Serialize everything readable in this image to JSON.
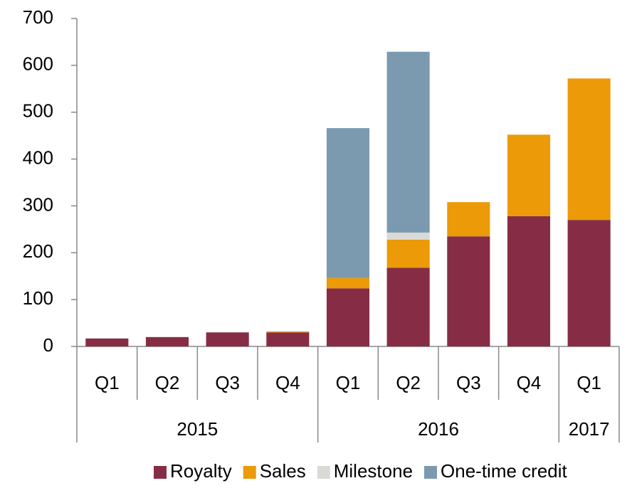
{
  "chart_data": {
    "type": "stacked_bar",
    "categories": [
      "Q1",
      "Q2",
      "Q3",
      "Q4",
      "Q1",
      "Q2",
      "Q3",
      "Q4",
      "Q1"
    ],
    "groups": [
      {
        "label": "2015",
        "span": 4
      },
      {
        "label": "2016",
        "span": 4
      },
      {
        "label": "2017",
        "span": 1
      }
    ],
    "series": [
      {
        "name": "Royalty",
        "color": "#862d45",
        "values": [
          17,
          20,
          30,
          30,
          124,
          168,
          235,
          278,
          270
        ]
      },
      {
        "name": "Sales",
        "color": "#ec9a08",
        "values": [
          0,
          0,
          0,
          2,
          22,
          60,
          73,
          174,
          302
        ]
      },
      {
        "name": "Milestone",
        "color": "#d9d9d6",
        "values": [
          0,
          0,
          0,
          0,
          0,
          15,
          0,
          0,
          0
        ]
      },
      {
        "name": "One-time credit",
        "color": "#7b9aaf",
        "values": [
          0,
          0,
          0,
          0,
          320,
          386,
          0,
          0,
          0
        ]
      }
    ],
    "ylim": [
      0,
      700
    ],
    "yticks": [
      0,
      100,
      200,
      300,
      400,
      500,
      600,
      700
    ],
    "legend": "bottom"
  }
}
